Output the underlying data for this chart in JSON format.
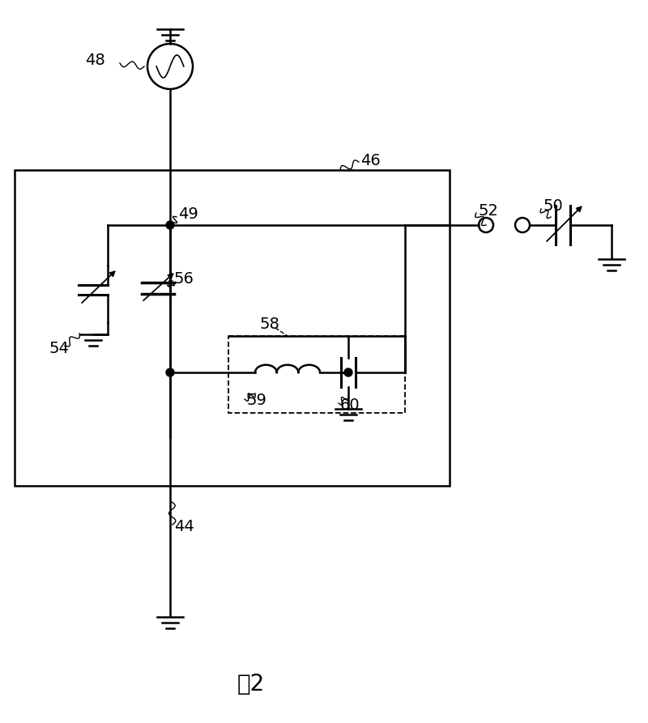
{
  "bg_color": "#ffffff",
  "line_color": "#000000",
  "title": "图2",
  "title_fontsize": 20,
  "fig_width": 8.0,
  "fig_height": 8.93
}
